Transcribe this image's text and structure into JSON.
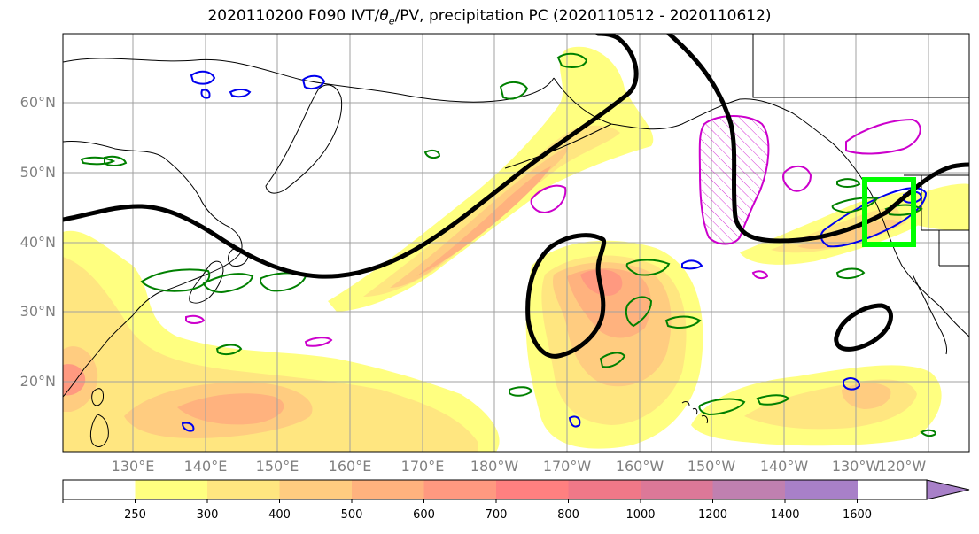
{
  "title": {
    "prefix": "2020110200 F090 IVT/",
    "theta": "θ",
    "theta_sub": "e",
    "suffix": "/PV, precipitation PC (2020110512 - 2020110612)"
  },
  "lat_labels": [
    "60°N",
    "50°N",
    "40°N",
    "30°N",
    "20°N"
  ],
  "lon_labels": [
    "130°E",
    "140°E",
    "150°E",
    "160°E",
    "170°E",
    "180°W",
    "170°W",
    "160°W",
    "150°W",
    "140°W",
    "130°W",
    "120°W"
  ],
  "colorbar": {
    "labels": [
      "250",
      "300",
      "400",
      "500",
      "600",
      "700",
      "800",
      "1000",
      "1200",
      "1400",
      "1600"
    ],
    "colors": [
      "#ffffff",
      "#ffff80",
      "#ffe680",
      "#ffcc80",
      "#ffb27e",
      "#ff9980",
      "#ff8080",
      "#f07888",
      "#dc7898",
      "#c080b0",
      "#a880c8"
    ]
  },
  "colors": {
    "ivt_fill": [
      "#ffff80",
      "#ffe680",
      "#ffcc80",
      "#ffb27e",
      "#ff9980",
      "#ff8080"
    ],
    "jet_contour": "#000000",
    "pv_contour": "#cc00cc",
    "theta_e_low": "#0000ee",
    "precip_pc": "#008000",
    "highlight_box": "#00ff00",
    "coastline": "#000000",
    "grid": "#a0a0a0"
  }
}
